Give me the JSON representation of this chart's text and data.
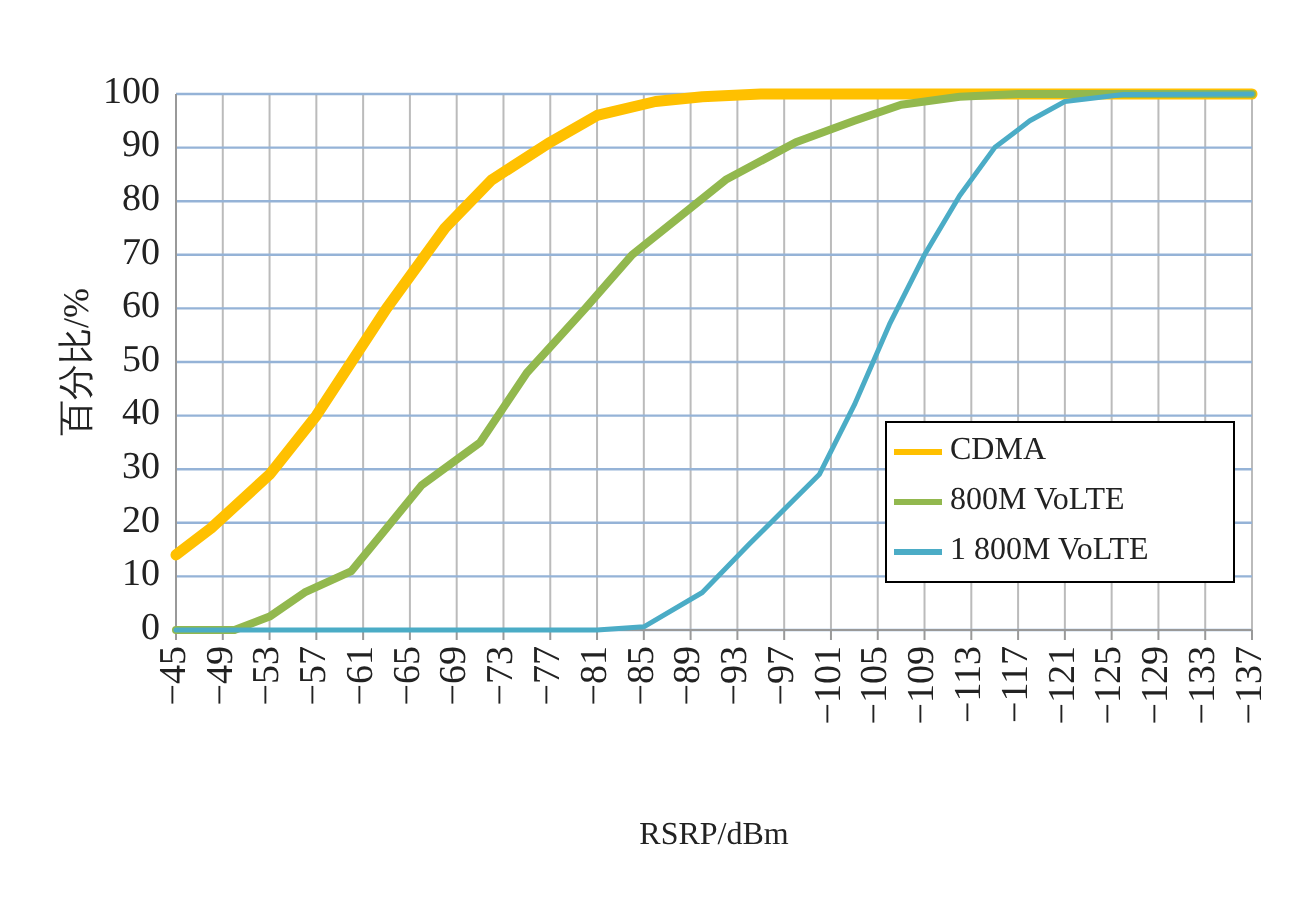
{
  "chart_data": {
    "type": "line",
    "xlabel": "RSRP/dBm",
    "ylabel": "百分比/%",
    "xlim": [
      -45,
      -137
    ],
    "xticks": [
      {
        "value": -45,
        "label": "−45"
      },
      {
        "value": -49,
        "label": "−49"
      },
      {
        "value": -53,
        "label": "−53"
      },
      {
        "value": -57,
        "label": "−57"
      },
      {
        "value": -61,
        "label": "−61"
      },
      {
        "value": -65,
        "label": "−65"
      },
      {
        "value": -69,
        "label": "−69"
      },
      {
        "value": -73,
        "label": "−73"
      },
      {
        "value": -77,
        "label": "−77"
      },
      {
        "value": -81,
        "label": "−81"
      },
      {
        "value": -85,
        "label": "−85"
      },
      {
        "value": -89,
        "label": "−89"
      },
      {
        "value": -93,
        "label": "−93"
      },
      {
        "value": -97,
        "label": "−97"
      },
      {
        "value": -101,
        "label": "−101"
      },
      {
        "value": -105,
        "label": "−105"
      },
      {
        "value": -109,
        "label": "−109"
      },
      {
        "value": -113,
        "label": "−113"
      },
      {
        "value": -117,
        "label": "−117"
      },
      {
        "value": -121,
        "label": "−121"
      },
      {
        "value": -125,
        "label": "−125"
      },
      {
        "value": -129,
        "label": "−129"
      },
      {
        "value": -133,
        "label": "−133"
      },
      {
        "value": -137,
        "label": "−137"
      }
    ],
    "ylim": [
      0,
      100
    ],
    "yticks": [
      0,
      10,
      20,
      30,
      40,
      50,
      60,
      70,
      80,
      90,
      100
    ],
    "grid": true,
    "legend": "bottom right",
    "line_style": "solid",
    "marker": "none",
    "series": [
      {
        "name": "CDMA",
        "color": "#ffc000",
        "x": [
          -45,
          -48,
          -53,
          -57,
          -60,
          -63,
          -66,
          -68,
          -72,
          -77,
          -81,
          -86,
          -90,
          -95,
          -137
        ],
        "values": [
          14,
          19,
          29,
          40,
          50,
          60,
          69,
          75,
          84,
          91,
          96,
          98.6,
          99.5,
          100,
          100
        ]
      },
      {
        "name": "800M VoLTE",
        "color": "#92b84e",
        "x": [
          -45,
          -50,
          -53,
          -56,
          -60,
          -63,
          -66,
          -71,
          -75,
          -80,
          -84,
          -88,
          -92,
          -98,
          -103,
          -107,
          -112,
          -117,
          -137
        ],
        "values": [
          0,
          0,
          2.5,
          7,
          11,
          19,
          27,
          35,
          48,
          60,
          70,
          77,
          84,
          91,
          95,
          98,
          99.5,
          100,
          100
        ]
      },
      {
        "name": "1 800M VoLTE",
        "color": "#4bacc6",
        "x": [
          -45,
          -81,
          -85,
          -90,
          -94,
          -100,
          -103,
          -106,
          -109,
          -112,
          -115,
          -118,
          -121,
          -126,
          -137
        ],
        "values": [
          0,
          0,
          0.6,
          7,
          16,
          29,
          42,
          57,
          70,
          81,
          90,
          95,
          98.6,
          99.9,
          100
        ]
      }
    ]
  }
}
